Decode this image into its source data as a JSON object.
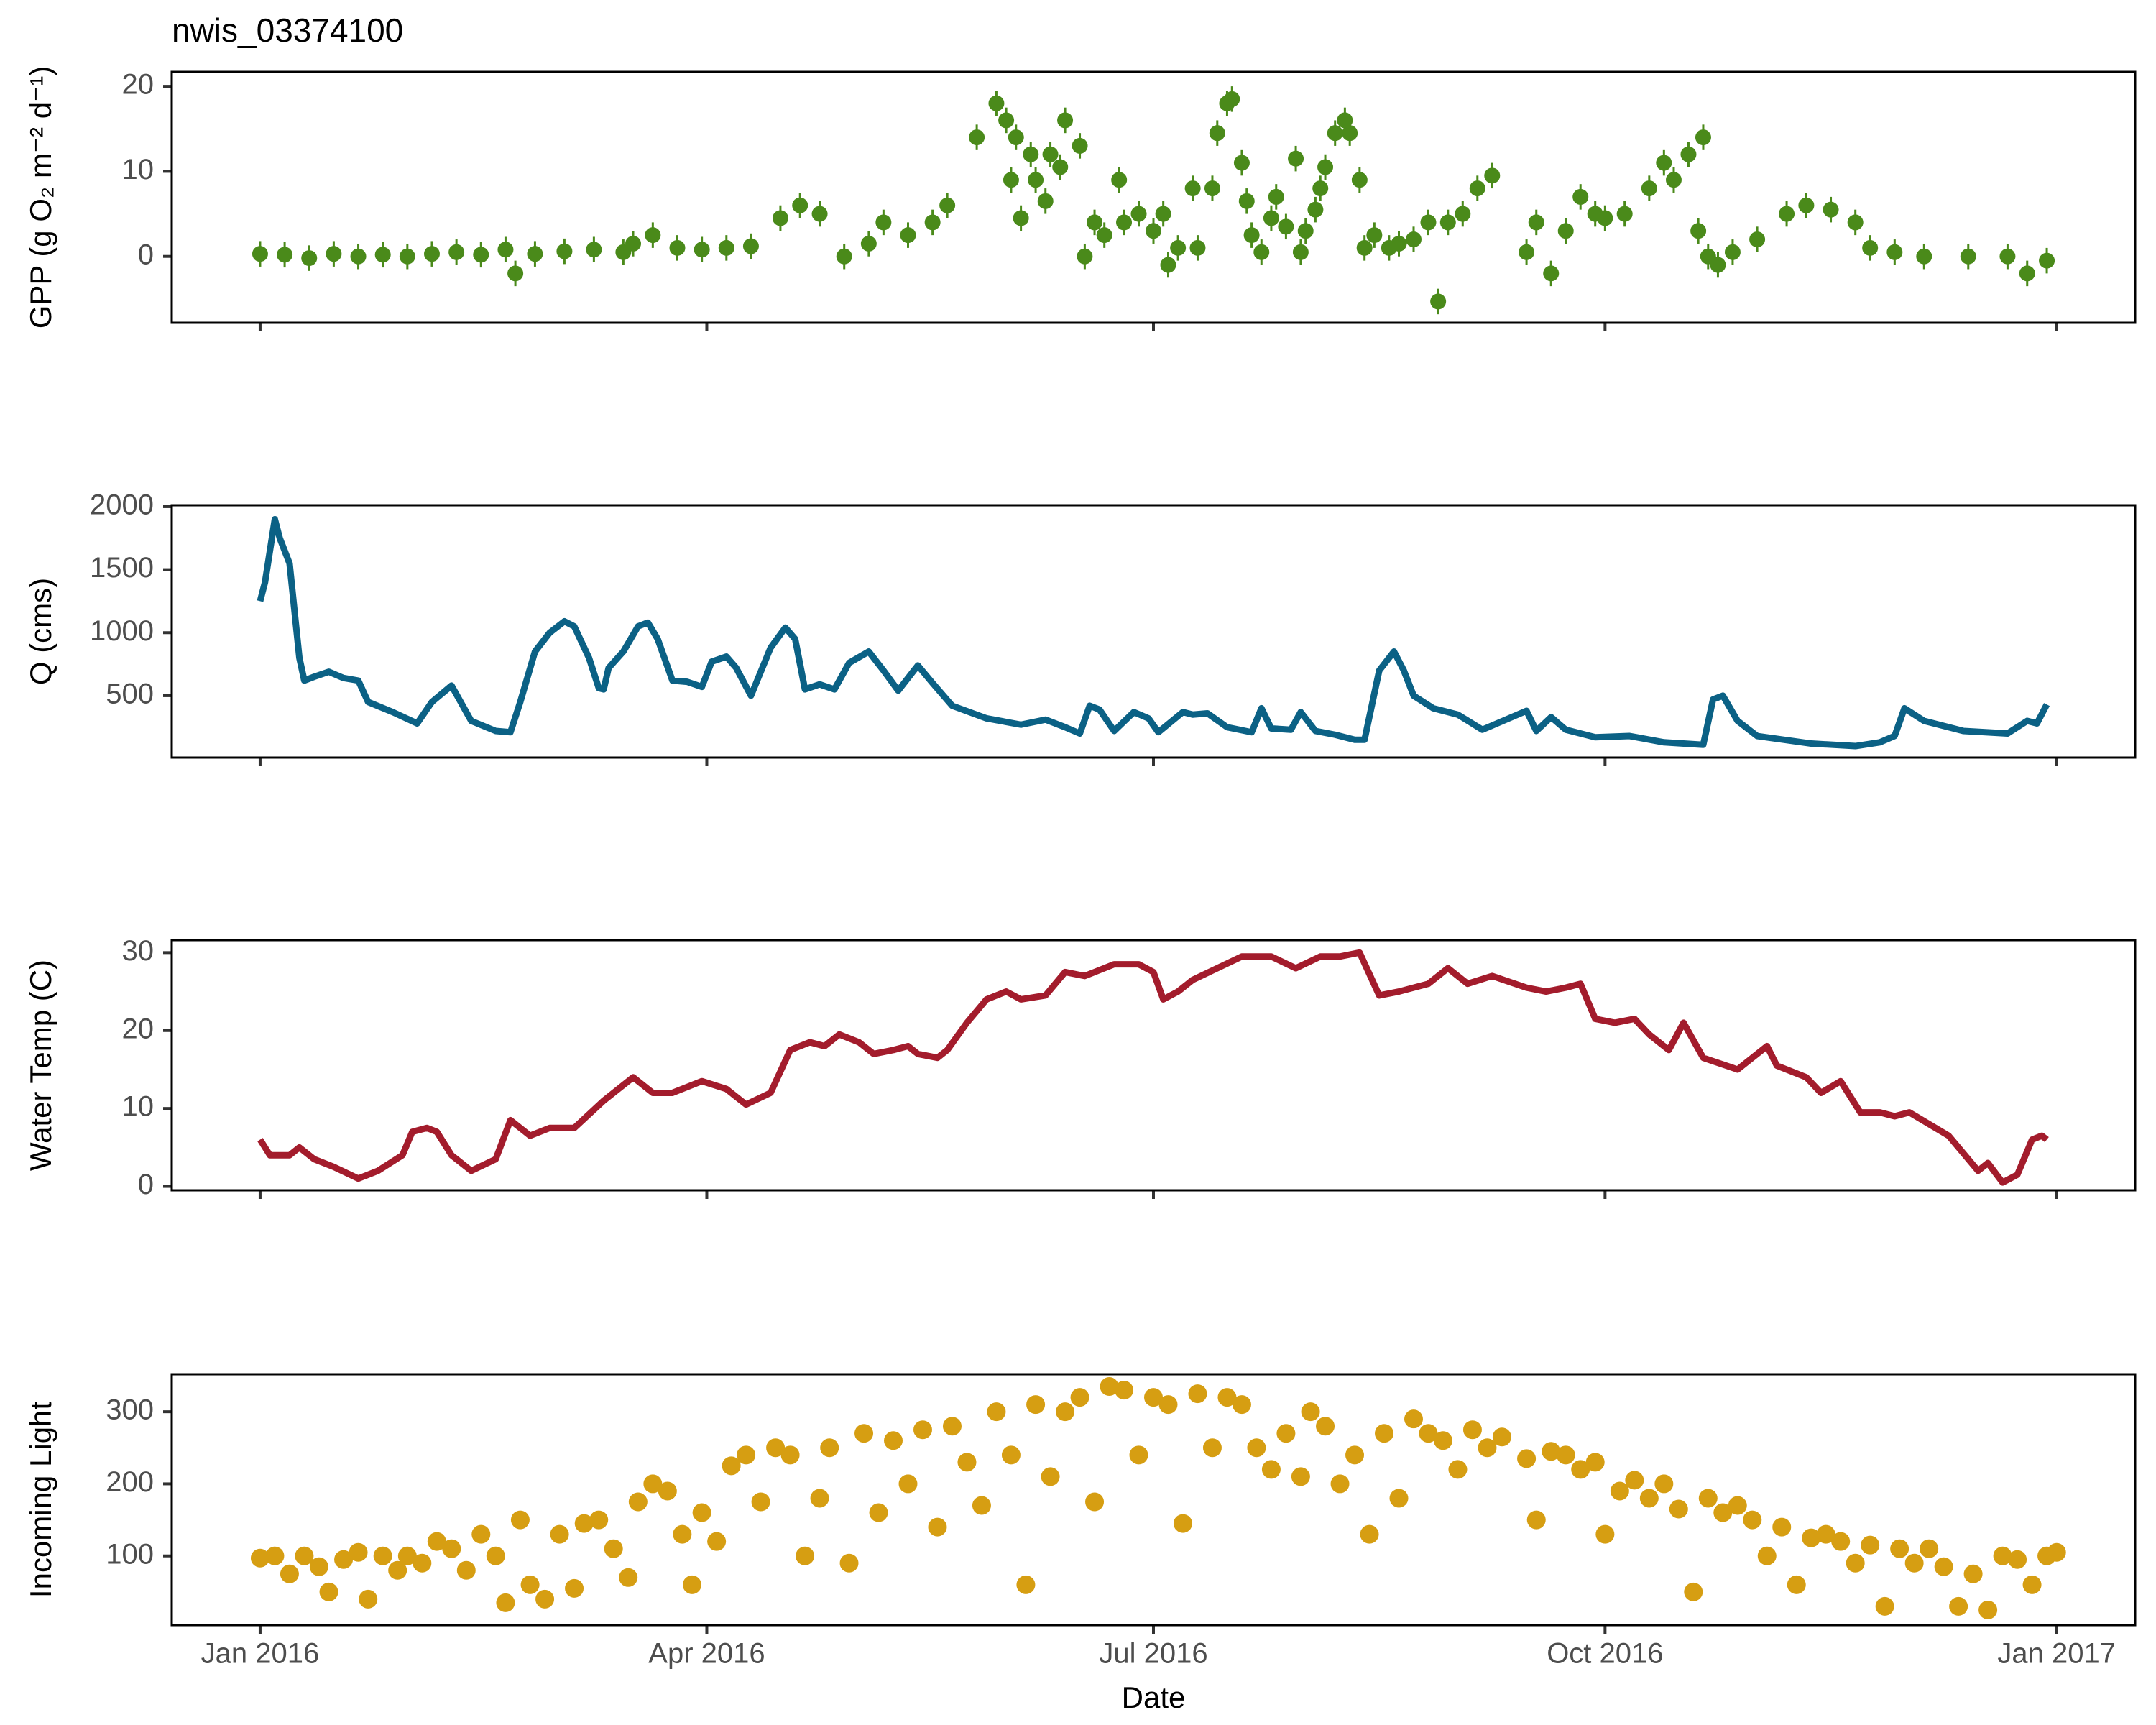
{
  "chart_data": [
    {
      "type": "scatter",
      "title": "nwis_03374100",
      "ylabel": "GPP (g O₂ m⁻² d⁻¹)",
      "color": "#4a8a1a",
      "error": 1.5,
      "x": [
        0,
        5,
        10,
        15,
        20,
        25,
        30,
        35,
        40,
        45,
        50,
        52,
        56,
        62,
        68,
        74,
        76,
        80,
        85,
        90,
        95,
        100,
        106,
        110,
        114,
        119,
        124,
        127,
        132,
        137,
        140,
        146,
        150,
        152,
        153,
        154,
        155,
        157,
        158,
        160,
        161,
        163,
        164,
        167,
        168,
        170,
        172,
        175,
        176,
        179,
        182,
        184,
        185,
        187,
        190,
        191,
        194,
        195,
        197,
        198,
        200,
        201,
        202,
        204,
        206,
        207,
        209,
        211,
        212,
        213,
        215,
        216,
        217,
        219,
        221,
        222,
        224,
        225,
        227,
        230,
        232,
        235,
        238,
        240,
        242,
        245,
        248,
        251,
        258,
        260,
        263,
        266,
        269,
        272,
        274,
        278,
        283,
        286,
        288,
        291,
        293,
        294,
        295,
        297,
        300,
        305,
        311,
        315,
        320,
        325,
        328,
        333,
        339,
        348,
        356,
        360,
        364
      ],
      "values": [
        0.3,
        0.2,
        -0.2,
        0.3,
        0,
        0.2,
        0,
        0.3,
        0.5,
        0.2,
        0.8,
        -2,
        0.3,
        0.6,
        0.8,
        0.5,
        1.5,
        2.5,
        1,
        0.8,
        1,
        1.2,
        4.5,
        6,
        5,
        0,
        1.5,
        4,
        2.5,
        4,
        6,
        14,
        18,
        16,
        9,
        14,
        4.5,
        12,
        9,
        6.5,
        12,
        10.5,
        16,
        13,
        0,
        4,
        2.5,
        9,
        4,
        5,
        3,
        5,
        -1,
        1,
        8,
        1,
        8,
        14.5,
        18,
        18.5,
        11,
        6.5,
        2.5,
        0.5,
        4.5,
        7,
        3.5,
        11.5,
        0.5,
        3,
        5.5,
        8,
        10.5,
        14.5,
        16,
        14.5,
        9,
        1,
        2.5,
        1,
        1.5,
        2,
        4,
        -5.3,
        4,
        5,
        8,
        9.5,
        0.5,
        4,
        -2,
        3,
        7,
        5,
        4.5,
        5,
        8,
        11,
        9,
        12,
        3,
        14,
        0,
        -1,
        0.5,
        2,
        5,
        6,
        5.5,
        4,
        1,
        0.5,
        0,
        0,
        0,
        -2,
        -0.5
      ],
      "xlim": [
        -18,
        382
      ],
      "ylim": [
        -7.8,
        21.7
      ],
      "yticks": [
        0,
        10,
        20
      ]
    },
    {
      "type": "line",
      "ylabel": "Q (cms)",
      "color": "#0b6185",
      "x": [
        0,
        1,
        3,
        4,
        6,
        8,
        9,
        11,
        14,
        17,
        20,
        22,
        27,
        32,
        35,
        39,
        43,
        48,
        51,
        53,
        56,
        59,
        62,
        64,
        67,
        69,
        70,
        71,
        74,
        77,
        79,
        81,
        84,
        87,
        90,
        92,
        95,
        97,
        100,
        104,
        107,
        109,
        111,
        114,
        117,
        120,
        124,
        127,
        130,
        134,
        137,
        141,
        148,
        155,
        160,
        164,
        167,
        169,
        171,
        174,
        178,
        181,
        183,
        188,
        190,
        193,
        197,
        202,
        204,
        206,
        210,
        212,
        215,
        219,
        223,
        225,
        228,
        231,
        233,
        235,
        239,
        244,
        249,
        258,
        260,
        263,
        266,
        272,
        279,
        286,
        294,
        296,
        298,
        301,
        305,
        316,
        325,
        330,
        333,
        335,
        339,
        347,
        356,
        360,
        362,
        364
      ],
      "values": [
        1250,
        1400,
        1900,
        1750,
        1550,
        800,
        620,
        650,
        690,
        640,
        620,
        450,
        370,
        280,
        450,
        580,
        300,
        220,
        210,
        450,
        850,
        1000,
        1090,
        1050,
        800,
        560,
        550,
        720,
        850,
        1050,
        1080,
        950,
        620,
        610,
        570,
        770,
        810,
        720,
        500,
        880,
        1040,
        950,
        550,
        590,
        550,
        760,
        850,
        700,
        540,
        740,
        600,
        420,
        320,
        270,
        310,
        250,
        200,
        420,
        390,
        220,
        370,
        320,
        210,
        370,
        350,
        360,
        250,
        210,
        400,
        240,
        230,
        370,
        220,
        190,
        150,
        150,
        700,
        850,
        700,
        500,
        400,
        350,
        230,
        380,
        220,
        330,
        230,
        170,
        180,
        130,
        110,
        470,
        500,
        300,
        180,
        120,
        100,
        130,
        180,
        400,
        300,
        220,
        200,
        300,
        280,
        430
      ],
      "xlim": [
        -18,
        382
      ],
      "ylim": [
        9,
        2011
      ],
      "yticks": [
        500,
        1000,
        1500,
        2000
      ]
    },
    {
      "type": "line",
      "ylabel": "Water Temp (C)",
      "color": "#a31c2c",
      "x": [
        0,
        2,
        6,
        8,
        11,
        15,
        20,
        24,
        29,
        31,
        34,
        36,
        39,
        43,
        48,
        51,
        55,
        59,
        64,
        70,
        76,
        80,
        84,
        90,
        95,
        99,
        104,
        108,
        112,
        115,
        118,
        122,
        125,
        129,
        132,
        134,
        138,
        140,
        144,
        148,
        152,
        155,
        160,
        164,
        168,
        174,
        179,
        182,
        184,
        187,
        190,
        195,
        200,
        206,
        211,
        216,
        220,
        224,
        228,
        232,
        238,
        242,
        246,
        251,
        258,
        262,
        266,
        269,
        272,
        276,
        280,
        283,
        287,
        290,
        294,
        301,
        307,
        309,
        315,
        318,
        322,
        326,
        330,
        333,
        336,
        340,
        344,
        348,
        350,
        352,
        355,
        358,
        361,
        363,
        364
      ],
      "values": [
        6,
        4,
        4,
        5,
        3.5,
        2.5,
        1,
        2,
        4,
        7,
        7.5,
        7,
        4,
        2,
        3.5,
        8.5,
        6.5,
        7.5,
        7.5,
        11,
        14,
        12,
        12,
        13.5,
        12.5,
        10.5,
        12,
        17.5,
        18.5,
        18,
        19.5,
        18.5,
        17,
        17.5,
        18,
        17,
        16.5,
        17.5,
        21,
        24,
        25,
        24,
        24.5,
        27.5,
        27,
        28.5,
        28.5,
        27.5,
        24,
        25,
        26.5,
        28,
        29.5,
        29.5,
        28,
        29.5,
        29.5,
        30,
        24.5,
        25,
        26,
        28,
        26,
        27,
        25.5,
        25,
        25.5,
        26,
        21.5,
        21,
        21.5,
        19.5,
        17.5,
        21,
        16.5,
        15,
        18,
        15.5,
        14,
        12,
        13.5,
        9.5,
        9.5,
        9,
        9.5,
        8,
        6.5,
        3.5,
        2,
        3,
        0.5,
        1.5,
        6,
        6.5,
        6
      ],
      "xlim": [
        -18,
        382
      ],
      "ylim": [
        -0.5,
        31.6
      ],
      "yticks": [
        0,
        10,
        20,
        30
      ]
    },
    {
      "type": "scatter",
      "ylabel": "Incoming Light",
      "xlabel": "Date",
      "color": "#d69e12",
      "x": [
        0,
        3,
        6,
        9,
        12,
        14,
        17,
        20,
        22,
        25,
        28,
        30,
        33,
        36,
        39,
        42,
        45,
        48,
        50,
        53,
        55,
        58,
        61,
        64,
        66,
        69,
        72,
        75,
        77,
        80,
        83,
        86,
        88,
        90,
        93,
        96,
        99,
        102,
        105,
        108,
        111,
        114,
        116,
        120,
        123,
        126,
        129,
        132,
        135,
        138,
        141,
        144,
        147,
        150,
        153,
        156,
        158,
        161,
        164,
        167,
        170,
        173,
        176,
        179,
        182,
        185,
        188,
        191,
        194,
        197,
        200,
        203,
        206,
        209,
        212,
        214,
        217,
        220,
        223,
        226,
        229,
        232,
        235,
        238,
        241,
        244,
        247,
        250,
        253,
        258,
        260,
        263,
        266,
        269,
        272,
        274,
        277,
        280,
        283,
        286,
        289,
        292,
        295,
        298,
        301,
        304,
        307,
        310,
        313,
        316,
        319,
        322,
        325,
        328,
        331,
        334,
        337,
        340,
        343,
        346,
        349,
        352,
        355,
        358,
        361,
        364,
        366
      ],
      "values": [
        97,
        100,
        75,
        100,
        85,
        50,
        95,
        105,
        40,
        100,
        80,
        100,
        90,
        120,
        110,
        80,
        130,
        100,
        35,
        150,
        60,
        40,
        130,
        55,
        145,
        150,
        110,
        70,
        175,
        200,
        190,
        130,
        60,
        160,
        120,
        225,
        240,
        175,
        250,
        240,
        100,
        180,
        250,
        90,
        270,
        160,
        260,
        200,
        275,
        140,
        280,
        230,
        170,
        300,
        240,
        60,
        310,
        210,
        300,
        320,
        175,
        335,
        330,
        240,
        320,
        310,
        145,
        325,
        250,
        320,
        310,
        250,
        220,
        270,
        210,
        300,
        280,
        200,
        240,
        130,
        270,
        180,
        290,
        270,
        260,
        220,
        275,
        250,
        265,
        235,
        150,
        245,
        240,
        220,
        230,
        130,
        190,
        205,
        180,
        200,
        165,
        50,
        180,
        160,
        170,
        150,
        100,
        140,
        60,
        125,
        130,
        120,
        90,
        115,
        30,
        110,
        90,
        110,
        85,
        30,
        75,
        25,
        100,
        95,
        60,
        100,
        105
      ],
      "xlim": [
        -18,
        382
      ],
      "ylim": [
        4,
        352
      ],
      "yticks": [
        100,
        200,
        300
      ],
      "xticks": [
        {
          "value": 0,
          "label": "Jan 2016"
        },
        {
          "value": 91,
          "label": "Apr 2016"
        },
        {
          "value": 182,
          "label": "Jul 2016"
        },
        {
          "value": 274,
          "label": "Oct 2016"
        },
        {
          "value": 366,
          "label": "Jan 2017"
        }
      ]
    }
  ]
}
